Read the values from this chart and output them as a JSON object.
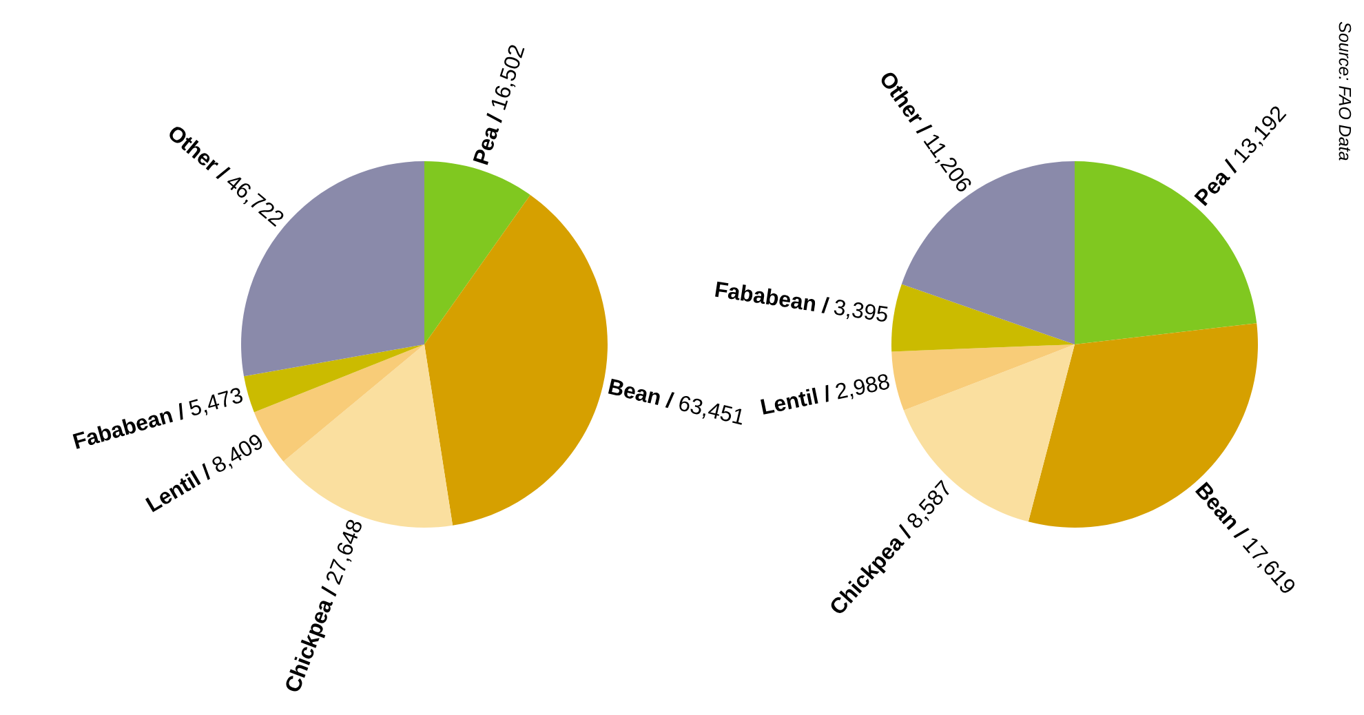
{
  "chart_data": [
    {
      "type": "pie",
      "categories": [
        "Pea /",
        "Bean /",
        "Chickpea /",
        "Lentil /",
        "Fababean /",
        "Other /"
      ],
      "values": [
        16502,
        63451,
        27648,
        8409,
        5473,
        46722
      ],
      "colors": [
        "#80c820",
        "#d6a000",
        "#fadf9f",
        "#f8cc78",
        "#cbbb00",
        "#8a8aaa"
      ],
      "value_labels": [
        "16,502",
        "63,451",
        "27,648",
        "8,409",
        "5,473",
        "46,722"
      ]
    },
    {
      "type": "pie",
      "categories": [
        "Pea /",
        "Bean /",
        "Chickpea /",
        "Lentil /",
        "Fababean /",
        "Other /"
      ],
      "values": [
        13192,
        17619,
        8587,
        2988,
        3395,
        11206
      ],
      "colors": [
        "#80c820",
        "#d6a000",
        "#fadf9f",
        "#f8cc78",
        "#cbbb00",
        "#8a8aaa"
      ],
      "value_labels": [
        "13,192",
        "17,619",
        "8,587",
        "2,988",
        "3,395",
        "11,206"
      ],
      "annotations": [
        "Source: FAO Data"
      ]
    }
  ]
}
